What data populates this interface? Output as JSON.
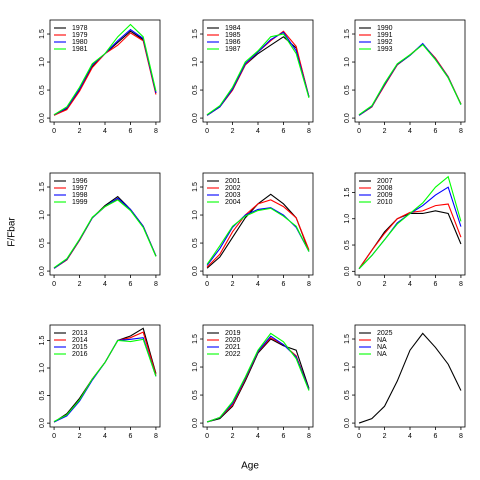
{
  "xlabel": "Age",
  "ylabel": "F/Fbar",
  "chart_data": [
    {
      "type": "line",
      "x": [
        0,
        1,
        2,
        3,
        4,
        5,
        6,
        7,
        8
      ],
      "xlim": [
        -0.32,
        8.32
      ],
      "xticks": [
        0,
        2,
        4,
        6,
        8
      ],
      "ylim": [
        -0.07,
        1.75
      ],
      "yticks": [
        {
          "value": 0,
          "label": "0.0"
        },
        {
          "value": 0.5,
          "label": "0.5"
        },
        {
          "value": 1,
          "label": "1.0"
        },
        {
          "value": 1.5,
          "label": "1.5"
        }
      ],
      "series": [
        {
          "name": "1978",
          "color": "#000000",
          "values": [
            0.05,
            0.17,
            0.5,
            0.92,
            1.15,
            1.35,
            1.55,
            1.4,
            0.45
          ]
        },
        {
          "name": "1979",
          "color": "#ff0000",
          "values": [
            0.05,
            0.15,
            0.48,
            0.9,
            1.15,
            1.3,
            1.52,
            1.38,
            0.42
          ]
        },
        {
          "name": "1980",
          "color": "#0000ff",
          "values": [
            0.06,
            0.18,
            0.52,
            0.95,
            1.15,
            1.38,
            1.58,
            1.42,
            0.45
          ]
        },
        {
          "name": "1981",
          "color": "#00ff00",
          "values": [
            0.06,
            0.2,
            0.55,
            0.97,
            1.15,
            1.45,
            1.67,
            1.45,
            0.48
          ]
        }
      ]
    },
    {
      "type": "line",
      "x": [
        0,
        1,
        2,
        3,
        4,
        5,
        6,
        7,
        8
      ],
      "xlim": [
        -0.32,
        8.32
      ],
      "xticks": [
        0,
        2,
        4,
        6,
        8
      ],
      "ylim": [
        -0.07,
        1.75
      ],
      "yticks": [
        {
          "value": 0,
          "label": "0.0"
        },
        {
          "value": 0.5,
          "label": "0.5"
        },
        {
          "value": 1,
          "label": "1.0"
        },
        {
          "value": 1.5,
          "label": "1.5"
        }
      ],
      "series": [
        {
          "name": "1984",
          "color": "#000000",
          "values": [
            0.05,
            0.2,
            0.5,
            0.95,
            1.15,
            1.3,
            1.45,
            1.25,
            0.38
          ]
        },
        {
          "name": "1985",
          "color": "#ff0000",
          "values": [
            0.05,
            0.2,
            0.5,
            0.95,
            1.18,
            1.38,
            1.55,
            1.28,
            0.38
          ]
        },
        {
          "name": "1986",
          "color": "#0000ff",
          "values": [
            0.05,
            0.2,
            0.52,
            0.97,
            1.18,
            1.4,
            1.53,
            1.2,
            0.38
          ]
        },
        {
          "name": "1987",
          "color": "#00ff00",
          "values": [
            0.06,
            0.22,
            0.55,
            1.0,
            1.2,
            1.45,
            1.5,
            1.15,
            0.36
          ]
        }
      ]
    },
    {
      "type": "line",
      "x": [
        0,
        1,
        2,
        3,
        4,
        5,
        6,
        7,
        8
      ],
      "xlim": [
        -0.32,
        8.32
      ],
      "xticks": [
        0,
        2,
        4,
        6,
        8
      ],
      "ylim": [
        -0.07,
        1.75
      ],
      "yticks": [
        {
          "value": 0,
          "label": "0.0"
        },
        {
          "value": 0.5,
          "label": "0.5"
        },
        {
          "value": 1,
          "label": "1.0"
        },
        {
          "value": 1.5,
          "label": "1.5"
        }
      ],
      "series": [
        {
          "name": "1990",
          "color": "#000000",
          "values": [
            0.05,
            0.2,
            0.6,
            0.95,
            1.12,
            1.32,
            1.05,
            0.72,
            0.25
          ]
        },
        {
          "name": "1991",
          "color": "#ff0000",
          "values": [
            0.05,
            0.2,
            0.58,
            0.95,
            1.13,
            1.32,
            1.07,
            0.74,
            0.25
          ]
        },
        {
          "name": "1992",
          "color": "#0000ff",
          "values": [
            0.05,
            0.21,
            0.6,
            0.96,
            1.12,
            1.33,
            1.05,
            0.73,
            0.24
          ]
        },
        {
          "name": "1993",
          "color": "#00ff00",
          "values": [
            0.06,
            0.22,
            0.62,
            0.97,
            1.13,
            1.31,
            1.04,
            0.72,
            0.24
          ]
        }
      ]
    },
    {
      "type": "line",
      "x": [
        0,
        1,
        2,
        3,
        4,
        5,
        6,
        7,
        8
      ],
      "xlim": [
        -0.32,
        8.32
      ],
      "xticks": [
        0,
        2,
        4,
        6,
        8
      ],
      "ylim": [
        -0.07,
        1.75
      ],
      "yticks": [
        {
          "value": 0,
          "label": "0.0"
        },
        {
          "value": 0.5,
          "label": "0.5"
        },
        {
          "value": 1,
          "label": "1.0"
        },
        {
          "value": 1.5,
          "label": "1.5"
        }
      ],
      "series": [
        {
          "name": "1996",
          "color": "#000000",
          "values": [
            0.05,
            0.2,
            0.55,
            0.95,
            1.17,
            1.33,
            1.1,
            0.8,
            0.27
          ]
        },
        {
          "name": "1997",
          "color": "#ff0000",
          "values": [
            0.05,
            0.2,
            0.55,
            0.95,
            1.15,
            1.28,
            1.1,
            0.8,
            0.27
          ]
        },
        {
          "name": "1998",
          "color": "#0000ff",
          "values": [
            0.05,
            0.21,
            0.56,
            0.95,
            1.15,
            1.3,
            1.1,
            0.8,
            0.27
          ]
        },
        {
          "name": "1999",
          "color": "#00ff00",
          "values": [
            0.06,
            0.22,
            0.57,
            0.96,
            1.15,
            1.27,
            1.08,
            0.78,
            0.26
          ]
        }
      ]
    },
    {
      "type": "line",
      "x": [
        0,
        1,
        2,
        3,
        4,
        5,
        6,
        7,
        8
      ],
      "xlim": [
        -0.32,
        8.32
      ],
      "xticks": [
        0,
        2,
        4,
        6,
        8
      ],
      "ylim": [
        -0.07,
        1.75
      ],
      "yticks": [
        {
          "value": 0,
          "label": "0.0"
        },
        {
          "value": 0.5,
          "label": "0.5"
        },
        {
          "value": 1,
          "label": "1.0"
        },
        {
          "value": 1.5,
          "label": "1.5"
        }
      ],
      "series": [
        {
          "name": "2001",
          "color": "#000000",
          "values": [
            0.05,
            0.25,
            0.6,
            0.95,
            1.2,
            1.37,
            1.2,
            0.95,
            0.35
          ]
        },
        {
          "name": "2002",
          "color": "#ff0000",
          "values": [
            0.07,
            0.3,
            0.7,
            1.0,
            1.2,
            1.27,
            1.15,
            0.95,
            0.38
          ]
        },
        {
          "name": "2003",
          "color": "#0000ff",
          "values": [
            0.1,
            0.4,
            0.78,
            1.0,
            1.1,
            1.13,
            1.0,
            0.78,
            0.35
          ]
        },
        {
          "name": "2004",
          "color": "#00ff00",
          "values": [
            0.12,
            0.45,
            0.8,
            0.98,
            1.08,
            1.12,
            0.98,
            0.8,
            0.35
          ]
        }
      ]
    },
    {
      "type": "line",
      "x": [
        0,
        1,
        2,
        3,
        4,
        5,
        6,
        7,
        8
      ],
      "xlim": [
        -0.32,
        8.32
      ],
      "xticks": [
        0,
        2,
        4,
        6,
        8
      ],
      "ylim": [
        -0.07,
        1.87
      ],
      "yticks": [
        {
          "value": 0,
          "label": "0.0"
        },
        {
          "value": 0.5,
          "label": "0.5"
        },
        {
          "value": 1,
          "label": "1.0"
        },
        {
          "value": 1.5,
          "label": "1.5"
        }
      ],
      "series": [
        {
          "name": "2007",
          "color": "#000000",
          "values": [
            0.05,
            0.4,
            0.75,
            1.0,
            1.1,
            1.1,
            1.15,
            1.1,
            0.52
          ]
        },
        {
          "name": "2008",
          "color": "#ff0000",
          "values": [
            0.05,
            0.4,
            0.72,
            1.0,
            1.12,
            1.15,
            1.25,
            1.28,
            0.65
          ]
        },
        {
          "name": "2009",
          "color": "#0000ff",
          "values": [
            0.05,
            0.3,
            0.6,
            0.92,
            1.1,
            1.25,
            1.45,
            1.6,
            0.85
          ]
        },
        {
          "name": "2010",
          "color": "#00ff00",
          "values": [
            0.05,
            0.3,
            0.6,
            0.9,
            1.1,
            1.3,
            1.6,
            1.8,
            0.95
          ]
        }
      ]
    },
    {
      "type": "line",
      "x": [
        0,
        1,
        2,
        3,
        4,
        5,
        6,
        7,
        8
      ],
      "xlim": [
        -0.32,
        8.32
      ],
      "xticks": [
        0,
        2,
        4,
        6,
        8
      ],
      "ylim": [
        -0.07,
        1.78
      ],
      "yticks": [
        {
          "value": 0,
          "label": "0.0"
        },
        {
          "value": 0.5,
          "label": "0.5"
        },
        {
          "value": 1,
          "label": "1.0"
        },
        {
          "value": 1.5,
          "label": "1.5"
        }
      ],
      "series": [
        {
          "name": "2013",
          "color": "#000000",
          "values": [
            0.02,
            0.17,
            0.45,
            0.8,
            1.1,
            1.5,
            1.58,
            1.72,
            0.9
          ]
        },
        {
          "name": "2014",
          "color": "#ff0000",
          "values": [
            0.02,
            0.15,
            0.42,
            0.8,
            1.1,
            1.5,
            1.55,
            1.65,
            0.88
          ]
        },
        {
          "name": "2015",
          "color": "#0000ff",
          "values": [
            0.02,
            0.13,
            0.4,
            0.78,
            1.1,
            1.5,
            1.52,
            1.55,
            0.85
          ]
        },
        {
          "name": "2016",
          "color": "#00ff00",
          "values": [
            0.03,
            0.15,
            0.42,
            0.8,
            1.1,
            1.5,
            1.48,
            1.52,
            0.85
          ]
        }
      ]
    },
    {
      "type": "line",
      "x": [
        0,
        1,
        2,
        3,
        4,
        5,
        6,
        7,
        8
      ],
      "xlim": [
        -0.32,
        8.32
      ],
      "xticks": [
        0,
        2,
        4,
        6,
        8
      ],
      "ylim": [
        -0.07,
        1.75
      ],
      "yticks": [
        {
          "value": 0,
          "label": "0.0"
        },
        {
          "value": 0.5,
          "label": "0.5"
        },
        {
          "value": 1,
          "label": "1.0"
        },
        {
          "value": 1.5,
          "label": "1.5"
        }
      ],
      "series": [
        {
          "name": "2019",
          "color": "#000000",
          "values": [
            0.02,
            0.08,
            0.3,
            0.75,
            1.25,
            1.5,
            1.38,
            1.3,
            0.62
          ]
        },
        {
          "name": "2020",
          "color": "#ff0000",
          "values": [
            0.02,
            0.1,
            0.32,
            0.78,
            1.27,
            1.52,
            1.4,
            1.2,
            0.6
          ]
        },
        {
          "name": "2021",
          "color": "#0000ff",
          "values": [
            0.02,
            0.1,
            0.35,
            0.8,
            1.28,
            1.55,
            1.4,
            1.18,
            0.6
          ]
        },
        {
          "name": "2022",
          "color": "#00ff00",
          "values": [
            0.02,
            0.1,
            0.38,
            0.82,
            1.3,
            1.6,
            1.45,
            1.15,
            0.58
          ]
        }
      ]
    },
    {
      "type": "line",
      "x": [
        0,
        1,
        2,
        3,
        4,
        5,
        6,
        7,
        8
      ],
      "xlim": [
        -0.32,
        8.32
      ],
      "xticks": [
        0,
        2,
        4,
        6,
        8
      ],
      "ylim": [
        -0.07,
        1.75
      ],
      "yticks": [
        {
          "value": 0,
          "label": "0.0"
        },
        {
          "value": 0.5,
          "label": "0.5"
        },
        {
          "value": 1,
          "label": "1.0"
        },
        {
          "value": 1.5,
          "label": "1.5"
        }
      ],
      "series": [
        {
          "name": "2025",
          "color": "#000000",
          "values": [
            0.0,
            0.08,
            0.3,
            0.75,
            1.3,
            1.6,
            1.35,
            1.05,
            0.58
          ]
        },
        {
          "name": "NA",
          "color": "#ff0000",
          "values": [
            null,
            null,
            null,
            null,
            null,
            null,
            null,
            null,
            null
          ]
        },
        {
          "name": "NA",
          "color": "#0000ff",
          "values": [
            null,
            null,
            null,
            null,
            null,
            null,
            null,
            null,
            null
          ]
        },
        {
          "name": "NA",
          "color": "#00ff00",
          "values": [
            null,
            null,
            null,
            null,
            null,
            null,
            null,
            null,
            null
          ]
        }
      ]
    }
  ]
}
